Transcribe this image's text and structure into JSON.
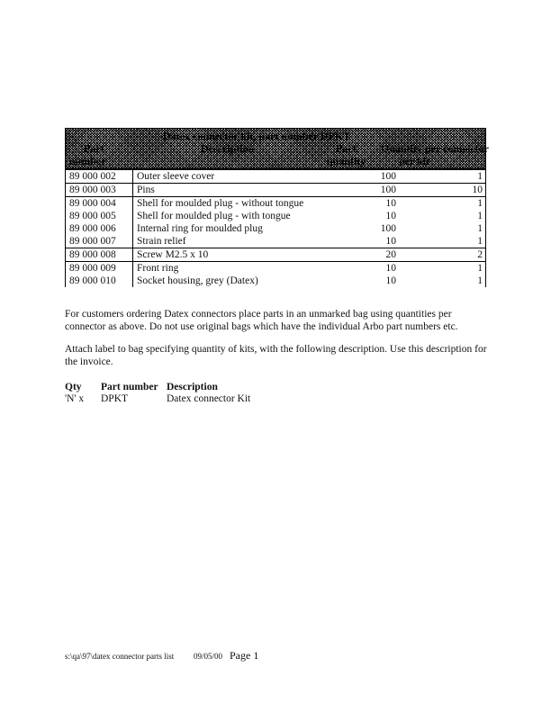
{
  "table": {
    "title": "Datex connector kit, part number DPKT",
    "headers": [
      "Part",
      "Description",
      "Pack",
      "Quantity per connector"
    ],
    "subheaders": [
      "number",
      "",
      "quantity",
      "per kit"
    ],
    "rows": [
      {
        "part": "89 000 002",
        "desc": "Outer sleeve cover",
        "pack": "100",
        "qty": "1",
        "sep": true
      },
      {
        "part": "89 000 003",
        "desc": "Pins",
        "pack": "100",
        "qty": "10",
        "sep": true
      },
      {
        "part": "89 000 004",
        "desc": "Shell for moulded plug - without tongue",
        "pack": "10",
        "qty": "1",
        "sep": true
      },
      {
        "part": "89 000 005",
        "desc": "Shell for moulded plug - with tongue",
        "pack": "10",
        "qty": "1",
        "sep": false
      },
      {
        "part": "89 000 006",
        "desc": "Internal ring for moulded plug",
        "pack": "100",
        "qty": "1",
        "sep": false
      },
      {
        "part": "89 000 007",
        "desc": "Strain relief",
        "pack": "10",
        "qty": "1",
        "sep": false
      },
      {
        "part": "89 000 008",
        "desc": "Screw M2.5 x 10",
        "pack": "20",
        "qty": "2",
        "sep": true
      },
      {
        "part": "89 000 009",
        "desc": "Front ring",
        "pack": "10",
        "qty": "1",
        "sep": true
      },
      {
        "part": "89 000 010",
        "desc": "Socket housing, grey (Datex)",
        "pack": "10",
        "qty": "1",
        "sep": false
      }
    ]
  },
  "para1": "For customers ordering Datex connectors place parts in an unmarked bag using quantities per connector as above.  Do not use original bags which have the individual Arbo part numbers etc.",
  "para2": "Attach label to bag specifying quantity of kits, with the following description.  Use this description for the invoice.",
  "label": {
    "h_qty": "Qty",
    "h_part": "Part number",
    "h_desc": "Description",
    "qty": "'N' x",
    "part": "DPKT",
    "desc": "Datex connector Kit"
  },
  "footer": {
    "file": "s:\\qa\\97\\datex connector parts list",
    "date": "09/05/00",
    "page": "Page 1"
  }
}
